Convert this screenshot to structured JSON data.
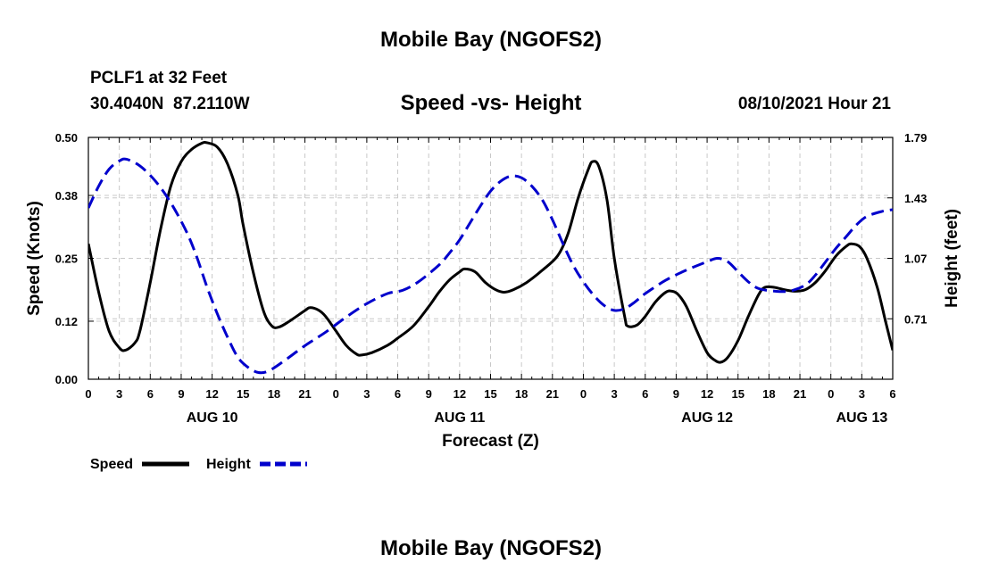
{
  "header": {
    "title_top": "Mobile Bay (NGOFS2)",
    "station": "PCLF1 at 32 Feet",
    "coords": "30.4040N  87.2110W",
    "chart_title": "Speed -vs- Height",
    "datetime": "08/10/2021 Hour 21",
    "title_bottom": "Mobile Bay (NGOFS2)"
  },
  "chart_data": {
    "type": "line",
    "title": "Speed -vs- Height",
    "xlabel": "Forecast (Z)",
    "ylabel_left": "Speed (Knots)",
    "ylabel_right": "Height (feet)",
    "x_range_hours": [
      0,
      78
    ],
    "x_ticks": [
      {
        "h": 0,
        "label": "0"
      },
      {
        "h": 3,
        "label": "3"
      },
      {
        "h": 6,
        "label": "6"
      },
      {
        "h": 9,
        "label": "9"
      },
      {
        "h": 12,
        "label": "12"
      },
      {
        "h": 15,
        "label": "15"
      },
      {
        "h": 18,
        "label": "18"
      },
      {
        "h": 21,
        "label": "21"
      },
      {
        "h": 24,
        "label": "0"
      },
      {
        "h": 27,
        "label": "3"
      },
      {
        "h": 30,
        "label": "6"
      },
      {
        "h": 33,
        "label": "9"
      },
      {
        "h": 36,
        "label": "12"
      },
      {
        "h": 39,
        "label": "15"
      },
      {
        "h": 42,
        "label": "18"
      },
      {
        "h": 45,
        "label": "21"
      },
      {
        "h": 48,
        "label": "0"
      },
      {
        "h": 51,
        "label": "3"
      },
      {
        "h": 54,
        "label": "6"
      },
      {
        "h": 57,
        "label": "9"
      },
      {
        "h": 60,
        "label": "12"
      },
      {
        "h": 63,
        "label": "15"
      },
      {
        "h": 66,
        "label": "18"
      },
      {
        "h": 69,
        "label": "21"
      },
      {
        "h": 72,
        "label": "0"
      },
      {
        "h": 75,
        "label": "3"
      },
      {
        "h": 78,
        "label": "6"
      }
    ],
    "date_labels": [
      {
        "h": 12,
        "label": "AUG 10"
      },
      {
        "h": 36,
        "label": "AUG 11"
      },
      {
        "h": 60,
        "label": "AUG 12"
      },
      {
        "h": 75,
        "label": "AUG 13"
      }
    ],
    "y_left": {
      "min": 0.0,
      "max": 0.5,
      "ticks": [
        "0.00",
        "0.12",
        "0.25",
        "0.38",
        "0.50"
      ]
    },
    "y_right": {
      "min": 0.35,
      "max": 1.79,
      "ticks": [
        "0.71",
        "1.07",
        "1.43",
        "1.79"
      ]
    },
    "series": [
      {
        "name": "Speed",
        "axis": "left",
        "color": "#000000",
        "dash": "solid",
        "points": [
          [
            0,
            0.28
          ],
          [
            1,
            0.18
          ],
          [
            2,
            0.1
          ],
          [
            3,
            0.065
          ],
          [
            3.6,
            0.06
          ],
          [
            4.5,
            0.075
          ],
          [
            5,
            0.1
          ],
          [
            6,
            0.2
          ],
          [
            7,
            0.31
          ],
          [
            8,
            0.4
          ],
          [
            9,
            0.45
          ],
          [
            10,
            0.475
          ],
          [
            11,
            0.488
          ],
          [
            11.5,
            0.489
          ],
          [
            12.5,
            0.48
          ],
          [
            13.5,
            0.445
          ],
          [
            14.5,
            0.38
          ],
          [
            15,
            0.32
          ],
          [
            16,
            0.22
          ],
          [
            17,
            0.14
          ],
          [
            17.8,
            0.11
          ],
          [
            18.5,
            0.108
          ],
          [
            19.5,
            0.12
          ],
          [
            21,
            0.142
          ],
          [
            21.5,
            0.148
          ],
          [
            22.3,
            0.143
          ],
          [
            23,
            0.13
          ],
          [
            24,
            0.1
          ],
          [
            25,
            0.07
          ],
          [
            26,
            0.052
          ],
          [
            26.5,
            0.05
          ],
          [
            27.5,
            0.055
          ],
          [
            29,
            0.07
          ],
          [
            30,
            0.085
          ],
          [
            31.5,
            0.11
          ],
          [
            33,
            0.15
          ],
          [
            34,
            0.18
          ],
          [
            35,
            0.205
          ],
          [
            36,
            0.222
          ],
          [
            36.5,
            0.228
          ],
          [
            37.5,
            0.222
          ],
          [
            38.5,
            0.2
          ],
          [
            39.5,
            0.185
          ],
          [
            40.3,
            0.18
          ],
          [
            41.2,
            0.185
          ],
          [
            42.5,
            0.2
          ],
          [
            44,
            0.225
          ],
          [
            45.5,
            0.255
          ],
          [
            46.5,
            0.3
          ],
          [
            47.5,
            0.375
          ],
          [
            48.5,
            0.435
          ],
          [
            48.9,
            0.45
          ],
          [
            49.5,
            0.44
          ],
          [
            50.3,
            0.37
          ],
          [
            51,
            0.25
          ],
          [
            52,
            0.13
          ],
          [
            52.3,
            0.11
          ],
          [
            53.2,
            0.112
          ],
          [
            54,
            0.13
          ],
          [
            55,
            0.16
          ],
          [
            56,
            0.18
          ],
          [
            56.6,
            0.182
          ],
          [
            57.2,
            0.175
          ],
          [
            58,
            0.15
          ],
          [
            59,
            0.1
          ],
          [
            60,
            0.055
          ],
          [
            60.7,
            0.04
          ],
          [
            61.3,
            0.035
          ],
          [
            62,
            0.045
          ],
          [
            63,
            0.08
          ],
          [
            64,
            0.13
          ],
          [
            65,
            0.175
          ],
          [
            65.6,
            0.19
          ],
          [
            66.5,
            0.19
          ],
          [
            67.5,
            0.185
          ],
          [
            68.5,
            0.182
          ],
          [
            69.5,
            0.185
          ],
          [
            70.5,
            0.2
          ],
          [
            71.5,
            0.225
          ],
          [
            72.5,
            0.255
          ],
          [
            73.5,
            0.275
          ],
          [
            74,
            0.28
          ],
          [
            74.8,
            0.274
          ],
          [
            75.5,
            0.25
          ],
          [
            76.5,
            0.19
          ],
          [
            77.3,
            0.12
          ],
          [
            78,
            0.06
          ]
        ]
      },
      {
        "name": "Height",
        "axis": "right",
        "color": "#0000cc",
        "dash": "dashed",
        "points": [
          [
            0,
            1.37
          ],
          [
            1,
            1.5
          ],
          [
            2,
            1.6
          ],
          [
            3,
            1.65
          ],
          [
            3.7,
            1.66
          ],
          [
            5,
            1.62
          ],
          [
            6.5,
            1.53
          ],
          [
            8,
            1.4
          ],
          [
            9.5,
            1.23
          ],
          [
            10.5,
            1.08
          ],
          [
            11.5,
            0.9
          ],
          [
            12.5,
            0.74
          ],
          [
            13.5,
            0.6
          ],
          [
            14.5,
            0.48
          ],
          [
            15.5,
            0.42
          ],
          [
            16.5,
            0.39
          ],
          [
            17.5,
            0.4
          ],
          [
            19,
            0.46
          ],
          [
            21,
            0.55
          ],
          [
            23,
            0.63
          ],
          [
            25,
            0.72
          ],
          [
            27,
            0.8
          ],
          [
            29,
            0.86
          ],
          [
            30.5,
            0.88
          ],
          [
            32,
            0.93
          ],
          [
            34,
            1.03
          ],
          [
            35,
            1.1
          ],
          [
            36,
            1.18
          ],
          [
            37,
            1.28
          ],
          [
            38,
            1.38
          ],
          [
            39,
            1.47
          ],
          [
            40,
            1.53
          ],
          [
            41,
            1.56
          ],
          [
            42,
            1.55
          ],
          [
            43,
            1.5
          ],
          [
            44,
            1.42
          ],
          [
            45,
            1.3
          ],
          [
            46,
            1.16
          ],
          [
            47,
            1.03
          ],
          [
            48,
            0.93
          ],
          [
            49,
            0.85
          ],
          [
            50,
            0.79
          ],
          [
            51,
            0.76
          ],
          [
            52,
            0.77
          ],
          [
            53,
            0.81
          ],
          [
            54,
            0.86
          ],
          [
            56,
            0.94
          ],
          [
            58,
            1.0
          ],
          [
            60,
            1.05
          ],
          [
            61,
            1.07
          ],
          [
            62,
            1.05
          ],
          [
            63,
            0.99
          ],
          [
            64,
            0.93
          ],
          [
            65,
            0.89
          ],
          [
            66.5,
            0.875
          ],
          [
            68,
            0.875
          ],
          [
            69.5,
            0.91
          ],
          [
            70.5,
            0.97
          ],
          [
            71.5,
            1.05
          ],
          [
            72.5,
            1.13
          ],
          [
            73.5,
            1.2
          ],
          [
            74.5,
            1.27
          ],
          [
            75.5,
            1.32
          ],
          [
            77,
            1.35
          ],
          [
            78,
            1.36
          ]
        ]
      }
    ],
    "legend": [
      {
        "label": "Speed",
        "color": "#000000",
        "dash": "solid"
      },
      {
        "label": "Height",
        "color": "#0000cc",
        "dash": "dashed"
      }
    ]
  }
}
